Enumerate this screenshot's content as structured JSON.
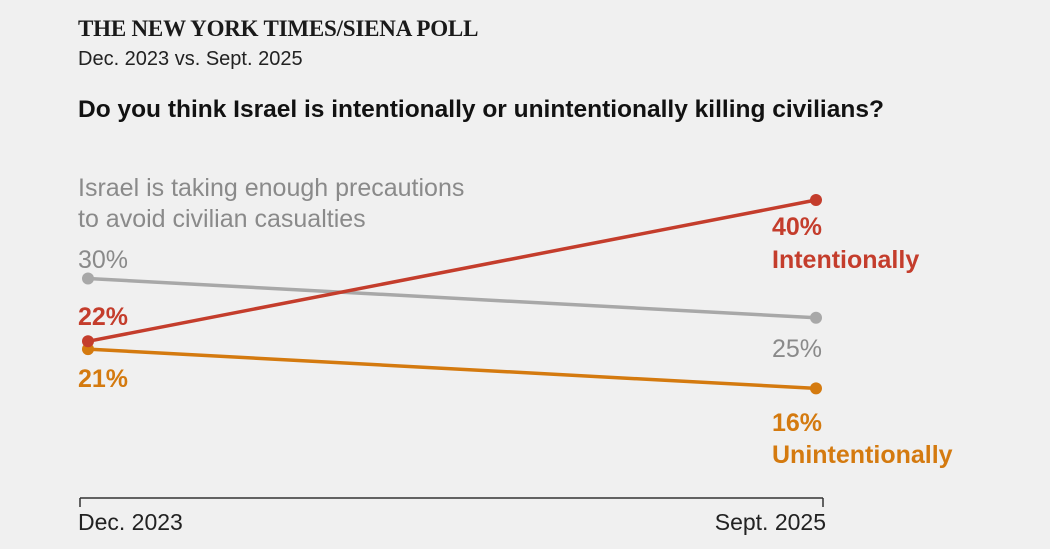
{
  "header": {
    "kicker": "THE NEW YORK TIMES/SIENA POLL",
    "subhead": "Dec. 2023 vs. Sept. 2025",
    "question": "Do you think Israel is intentionally or unintentionally killing civilians?"
  },
  "chart_data": {
    "type": "line",
    "x": [
      "Dec. 2023",
      "Sept. 2025"
    ],
    "ylim": [
      0,
      50
    ],
    "series": [
      {
        "name": "Israel is taking enough precautions to avoid civilian casualties",
        "name_lines": [
          "Israel is taking enough precautions",
          "to avoid civilian casualties"
        ],
        "values": [
          30,
          25
        ],
        "labels": [
          "30%",
          "25%"
        ],
        "color": "#a8a8a8"
      },
      {
        "name": "Intentionally",
        "values": [
          22,
          40
        ],
        "labels": [
          "22%",
          "40%"
        ],
        "color": "#c43d2c"
      },
      {
        "name": "Unintentionally",
        "values": [
          21,
          16
        ],
        "labels": [
          "21%",
          "16%"
        ],
        "color": "#d47a0f"
      }
    ]
  }
}
